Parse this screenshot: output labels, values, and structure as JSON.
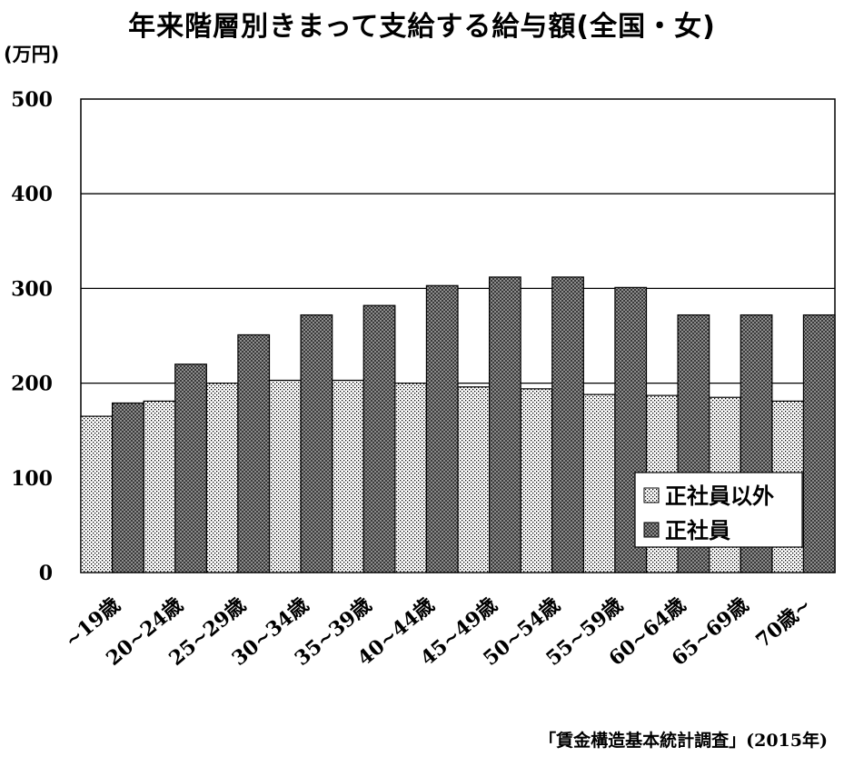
{
  "header": {
    "title": "年来階層別きまって支給する給与額(全国・女)",
    "y_unit": "(万円)",
    "source": "「賃金構造基本統計調査」(2015年)"
  },
  "chart_data": {
    "type": "bar",
    "title": "年来階層別きまって支給する給与額(全国・女)",
    "xlabel": "",
    "ylabel": "(万円)",
    "ylim": [
      0,
      500
    ],
    "yticks": [
      0,
      100,
      200,
      300,
      400,
      500
    ],
    "grid": true,
    "legend_position": "bottom-right",
    "categories": [
      "~19歳",
      "20~24歳",
      "25~29歳",
      "30~34歳",
      "35~39歳",
      "40~44歳",
      "45~49歳",
      "50~54歳",
      "55~59歳",
      "60~64歳",
      "65~69歳",
      "70歳~"
    ],
    "series": [
      {
        "name": "正社員以外",
        "pattern": "dotted",
        "color": "#d9d9d9",
        "values": [
          165,
          181,
          200,
          203,
          203,
          200,
          196,
          194,
          188,
          187,
          185,
          181
        ]
      },
      {
        "name": "正社員",
        "pattern": "crosshatch",
        "color": "#7a7a7a",
        "values": [
          179,
          220,
          251,
          272,
          282,
          303,
          312,
          312,
          301,
          272,
          272,
          272
        ]
      }
    ]
  }
}
